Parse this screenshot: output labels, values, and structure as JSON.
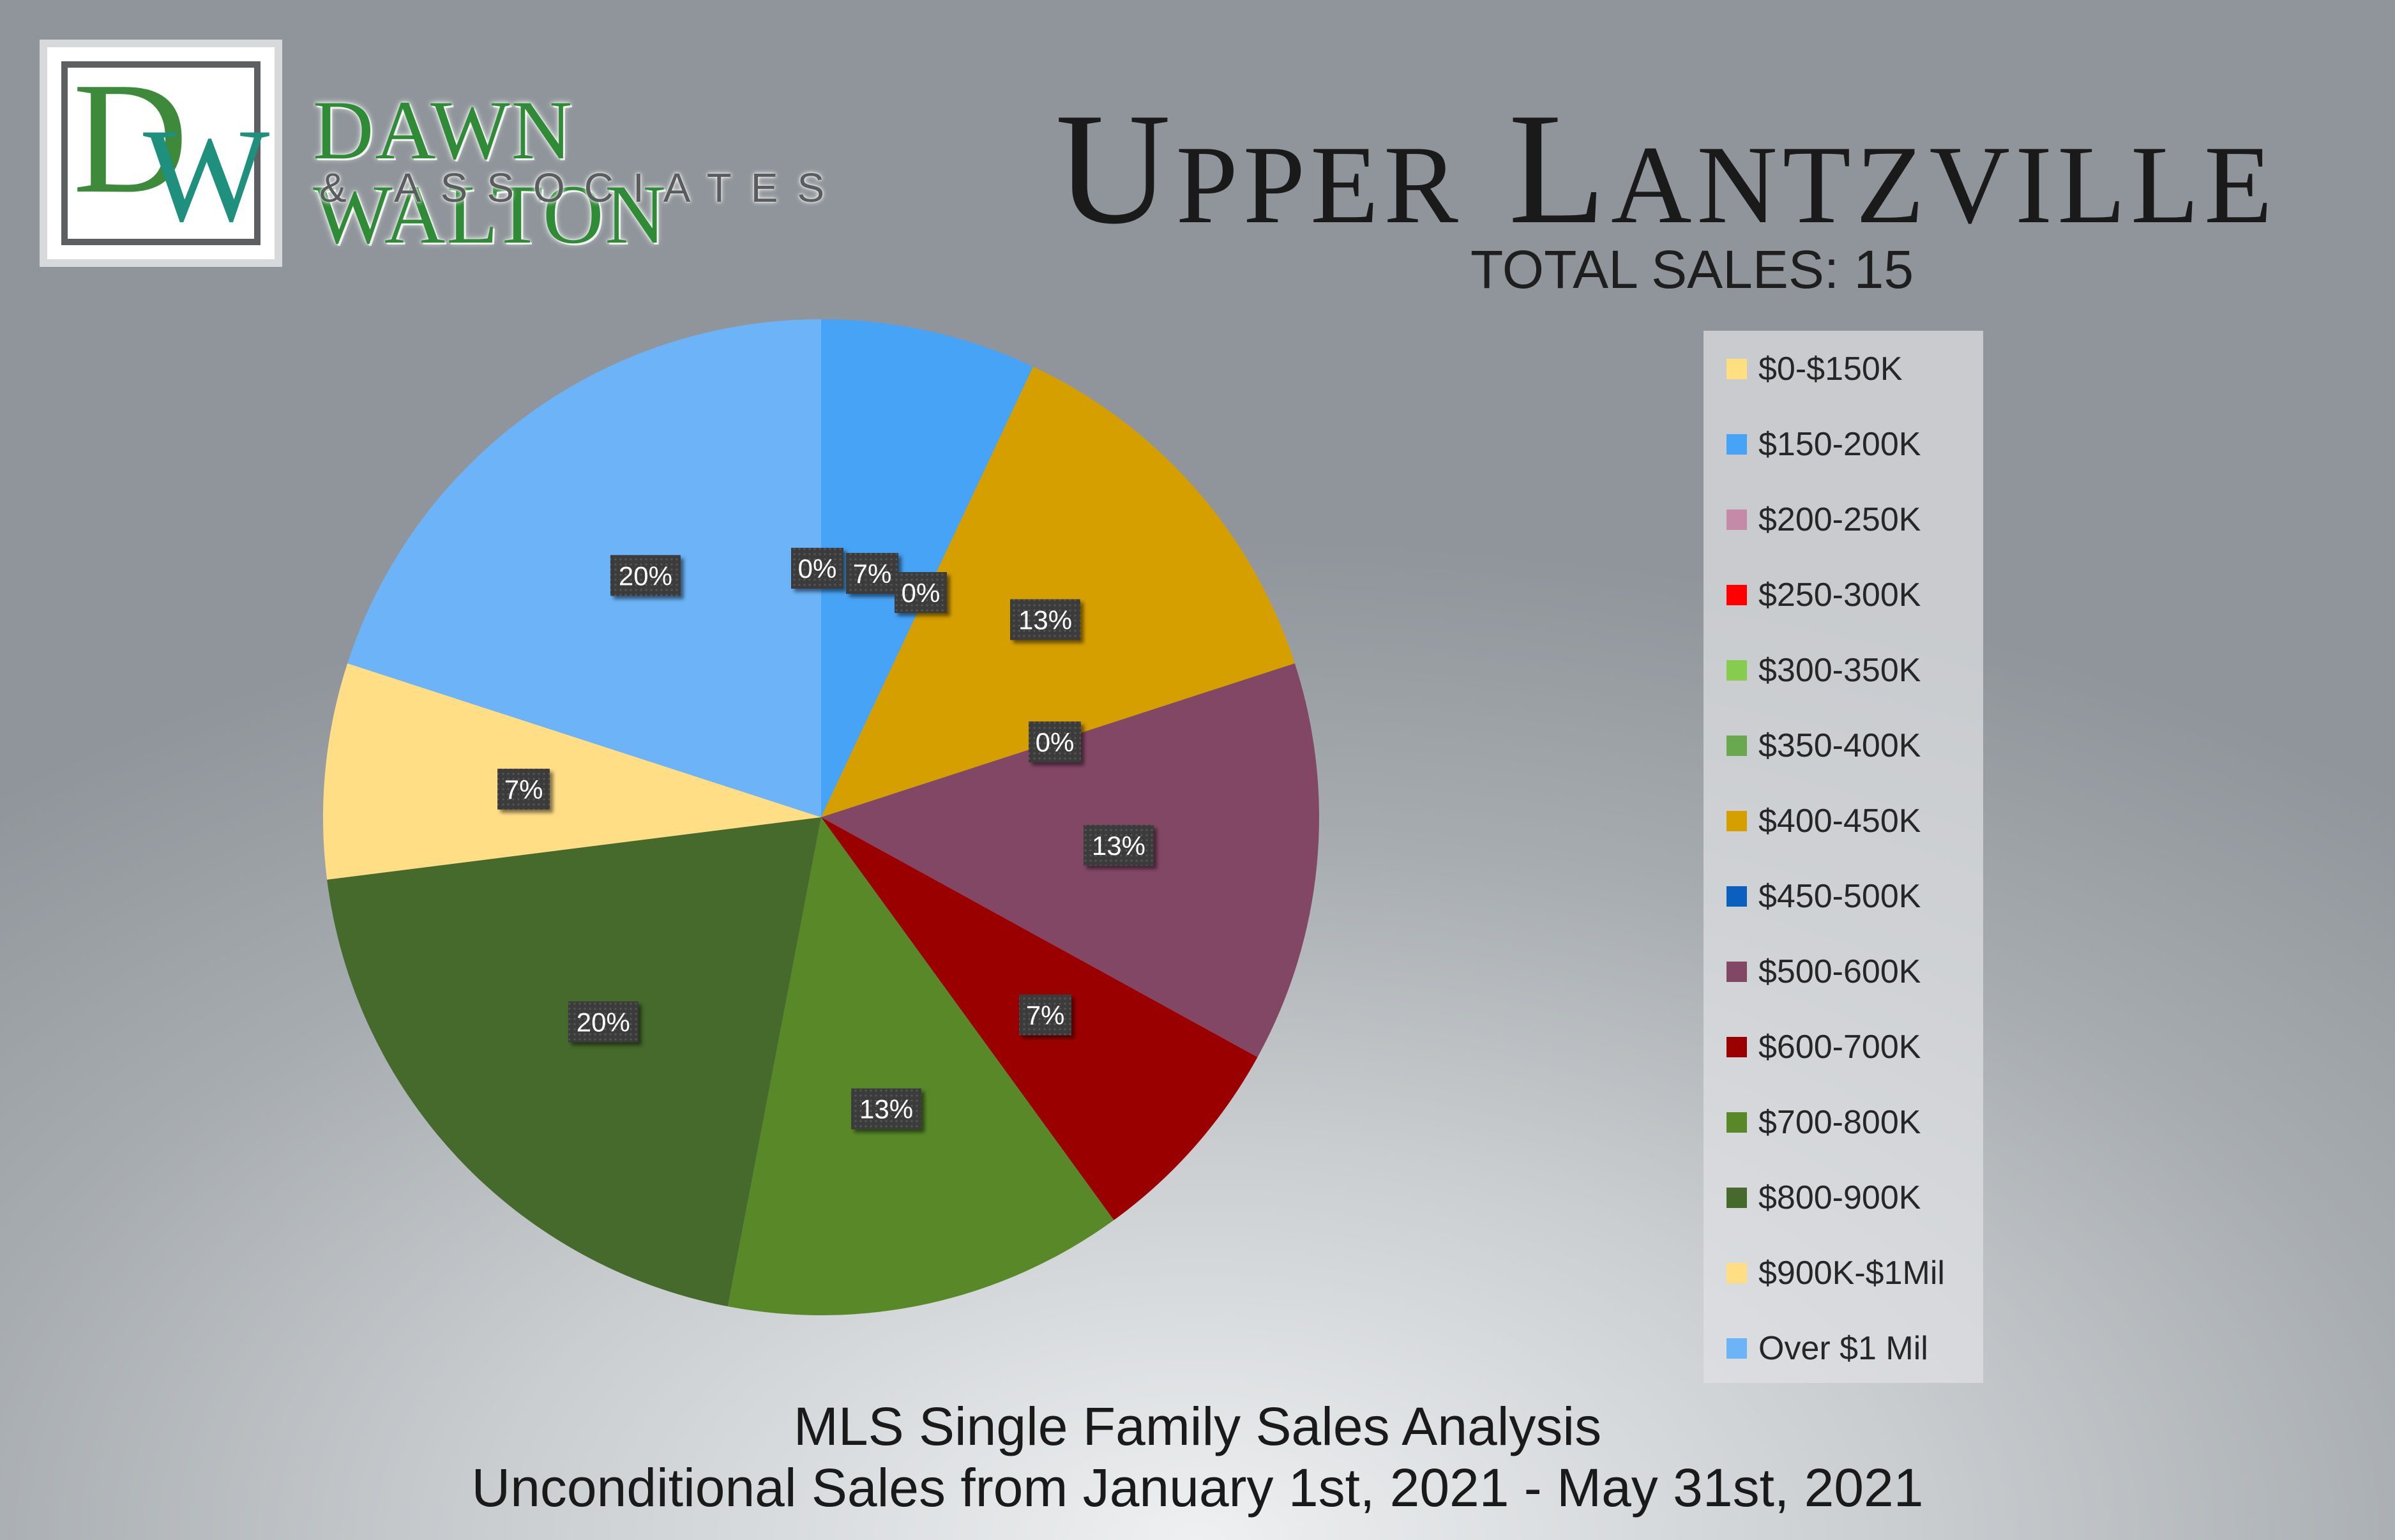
{
  "brand": {
    "logo_letter_1": "D",
    "logo_letter_2": "W",
    "name_line_1": "DAWN WALTON",
    "name_line_2": "& ASSOCIATES"
  },
  "header": {
    "title": "Upper Lantzville",
    "total_sales": "TOTAL SALES: 15"
  },
  "footer": {
    "subtitle": "MLS Single Family Sales Analysis",
    "date_range": "Unconditional Sales from January 1st, 2021 - May 31st, 2021"
  },
  "chart_data": {
    "type": "pie",
    "title": "Upper Lantzville",
    "legend_position": "right",
    "slices": [
      {
        "name": "$0-$150K",
        "value": 0,
        "label": "0%",
        "color": "#ffdf80"
      },
      {
        "name": "$150-200K",
        "value": 7,
        "label": "7%",
        "color": "#47a3f5"
      },
      {
        "name": "$200-250K",
        "value": 0,
        "label": "0%",
        "color": "#c58aa7"
      },
      {
        "name": "$250-300K",
        "value": 0,
        "label": "",
        "color": "#ff0000"
      },
      {
        "name": "$300-350K",
        "value": 0,
        "label": "",
        "color": "#86cc4f"
      },
      {
        "name": "$350-400K",
        "value": 0,
        "label": "",
        "color": "#6aa84f"
      },
      {
        "name": "$400-450K",
        "value": 13,
        "label": "13%",
        "color": "#d69f00"
      },
      {
        "name": "$450-500K",
        "value": 0,
        "label": "0%",
        "color": "#0b5fbf"
      },
      {
        "name": "$500-600K",
        "value": 13,
        "label": "13%",
        "color": "#834766"
      },
      {
        "name": "$600-700K",
        "value": 7,
        "label": "7%",
        "color": "#9b0000"
      },
      {
        "name": "$700-800K",
        "value": 13,
        "label": "13%",
        "color": "#588828"
      },
      {
        "name": "$800-900K",
        "value": 20,
        "label": "20%",
        "color": "#456a2b"
      },
      {
        "name": "$900K-$1Mil",
        "value": 7,
        "label": "7%",
        "color": "#ffde85"
      },
      {
        "name": "Over $1 Mil",
        "value": 20,
        "label": "20%",
        "color": "#6cb4f7"
      }
    ]
  }
}
